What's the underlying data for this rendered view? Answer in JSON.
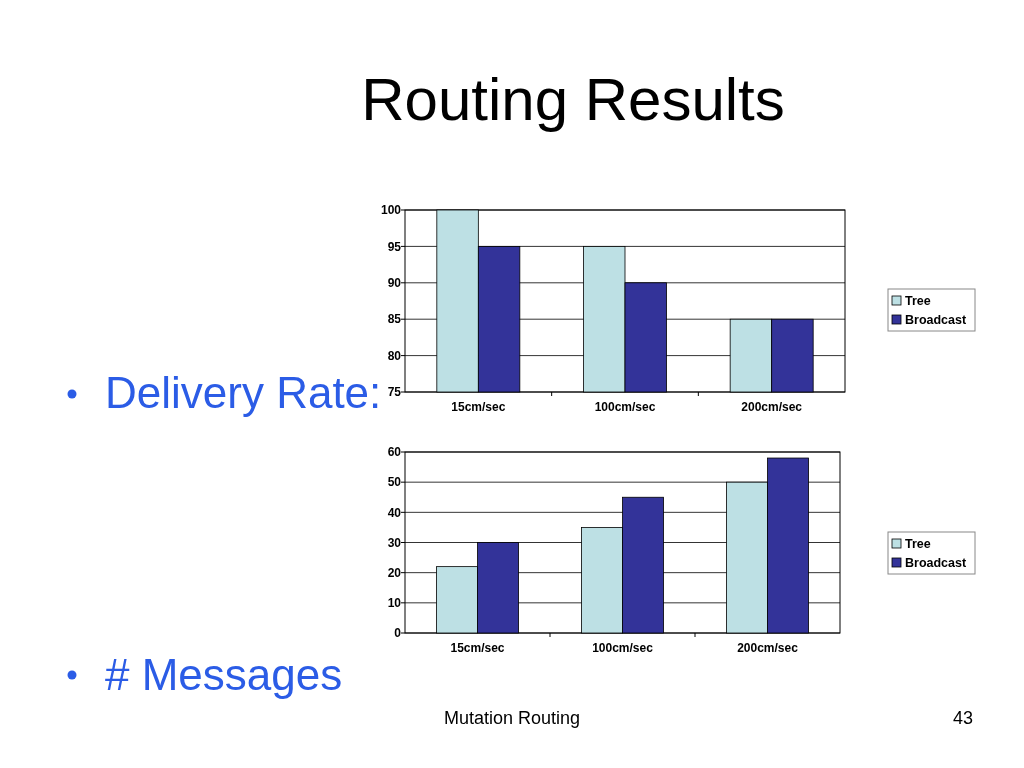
{
  "chart_data": [
    {
      "type": "bar",
      "title": "Routing Results",
      "subtitle": "Delivery Rate:",
      "categories": [
        "15cm/sec",
        "100cm/sec",
        "200cm/sec"
      ],
      "series": [
        {
          "name": "Tree",
          "color": "#bde0e4",
          "values": [
            100,
            95,
            85
          ]
        },
        {
          "name": "Broadcast",
          "color": "#333399",
          "values": [
            95,
            90,
            85
          ]
        }
      ],
      "ylim": [
        75,
        100
      ],
      "yticks": [
        75,
        80,
        85,
        90,
        95,
        100
      ],
      "grid": "y",
      "legend": "right"
    },
    {
      "type": "bar",
      "subtitle": "# Messages",
      "categories": [
        "15cm/sec",
        "100cm/sec",
        "200cm/sec"
      ],
      "series": [
        {
          "name": "Tree",
          "color": "#bde0e4",
          "values": [
            22,
            35,
            50
          ]
        },
        {
          "name": "Broadcast",
          "color": "#333399",
          "values": [
            30,
            45,
            58
          ]
        }
      ],
      "ylim": [
        0,
        60
      ],
      "yticks": [
        0,
        10,
        20,
        30,
        40,
        50,
        60
      ],
      "grid": "y",
      "legend": "right",
      "annotations": [
        "Mutation Routing",
        "43"
      ]
    }
  ]
}
